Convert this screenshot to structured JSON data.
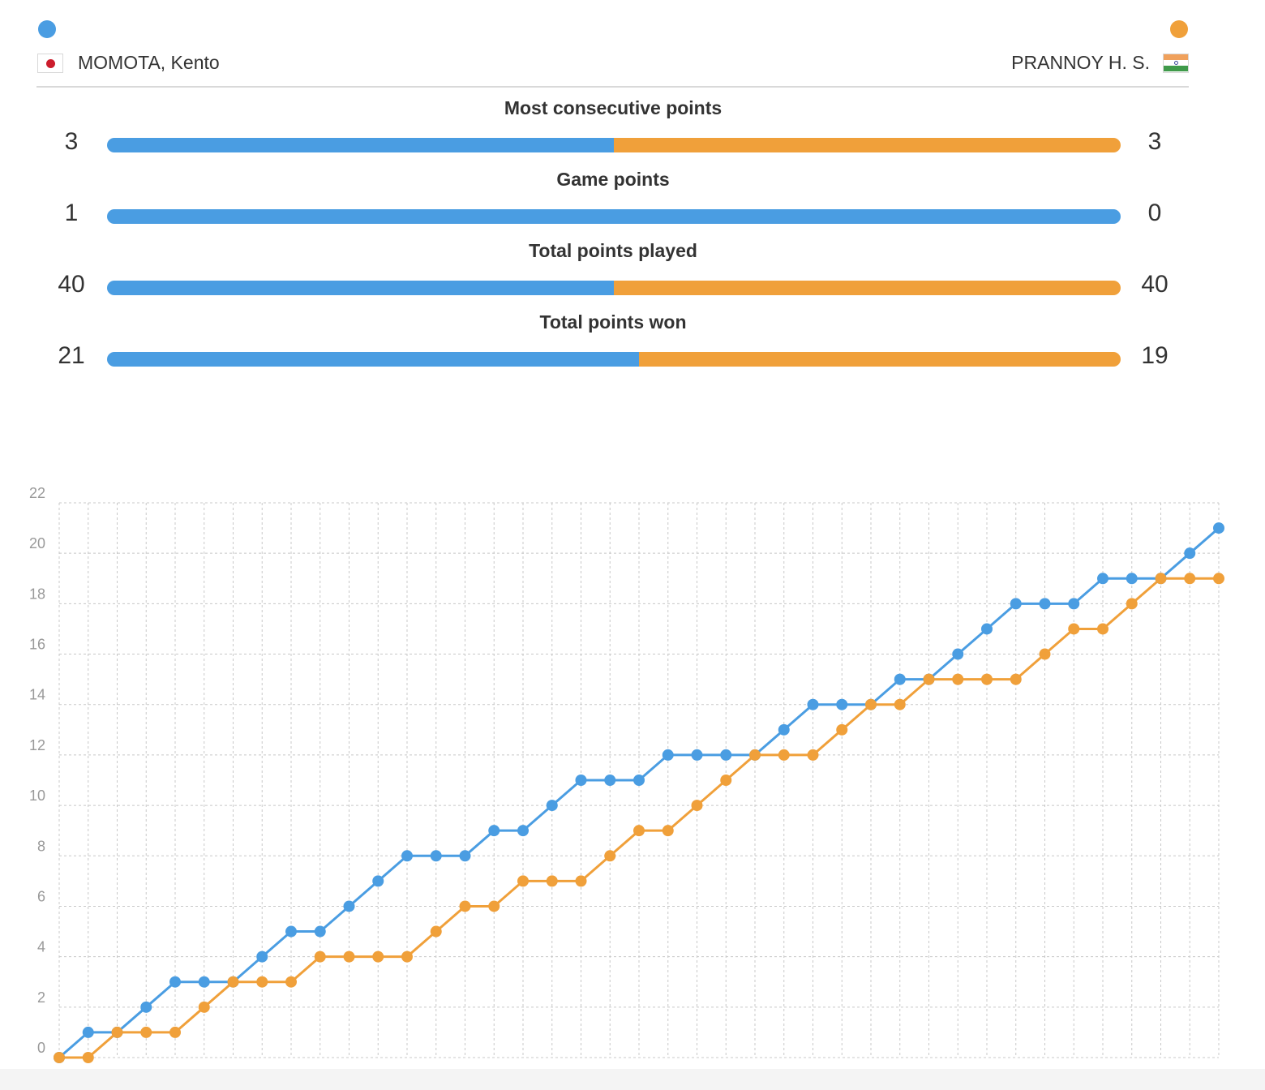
{
  "colors": {
    "player1": "#4a9de2",
    "player2": "#f0a03a",
    "grid": "#c8c8c8",
    "axis_text": "#999999"
  },
  "players": {
    "left": {
      "name": "MOMOTA, Kento",
      "flag": "japan-flag-icon"
    },
    "right": {
      "name": "PRANNOY H. S.",
      "flag": "india-flag-icon"
    }
  },
  "stats": [
    {
      "title": "Most consecutive points",
      "left": "3",
      "right": "3",
      "left_value": 3,
      "right_value": 3
    },
    {
      "title": "Game points",
      "left": "1",
      "right": "0",
      "left_value": 1,
      "right_value": 0
    },
    {
      "title": "Total points played",
      "left": "40",
      "right": "40",
      "left_value": 40,
      "right_value": 40
    },
    {
      "title": "Total points won",
      "left": "21",
      "right": "19",
      "left_value": 21,
      "right_value": 19
    }
  ],
  "chart_data": {
    "type": "line",
    "x": [
      0,
      1,
      2,
      3,
      4,
      5,
      6,
      7,
      8,
      9,
      10,
      11,
      12,
      13,
      14,
      15,
      16,
      17,
      18,
      19,
      20,
      21,
      22,
      23,
      24,
      25,
      26,
      27,
      28,
      29,
      30,
      31,
      32,
      33,
      34,
      35,
      36,
      37,
      38,
      39,
      40
    ],
    "series": [
      {
        "player": "left",
        "color": "#4a9de2",
        "values": [
          0,
          1,
          1,
          2,
          3,
          3,
          3,
          4,
          5,
          5,
          6,
          7,
          8,
          8,
          8,
          9,
          9,
          10,
          11,
          11,
          11,
          12,
          12,
          12,
          12,
          13,
          14,
          14,
          14,
          15,
          15,
          16,
          17,
          18,
          18,
          18,
          19,
          19,
          19,
          20,
          21
        ]
      },
      {
        "player": "right",
        "color": "#f0a03a",
        "values": [
          0,
          0,
          1,
          1,
          1,
          2,
          3,
          3,
          3,
          4,
          4,
          4,
          4,
          5,
          6,
          6,
          7,
          7,
          7,
          8,
          9,
          9,
          10,
          11,
          12,
          12,
          12,
          13,
          14,
          14,
          15,
          15,
          15,
          15,
          16,
          17,
          17,
          18,
          19,
          19,
          19
        ]
      }
    ],
    "yticks": [
      "0",
      "2",
      "4",
      "6",
      "8",
      "10",
      "12",
      "14",
      "16",
      "18",
      "20",
      "22"
    ],
    "ylim": [
      0,
      22
    ],
    "xlim": [
      0,
      40
    ],
    "grid": true
  }
}
